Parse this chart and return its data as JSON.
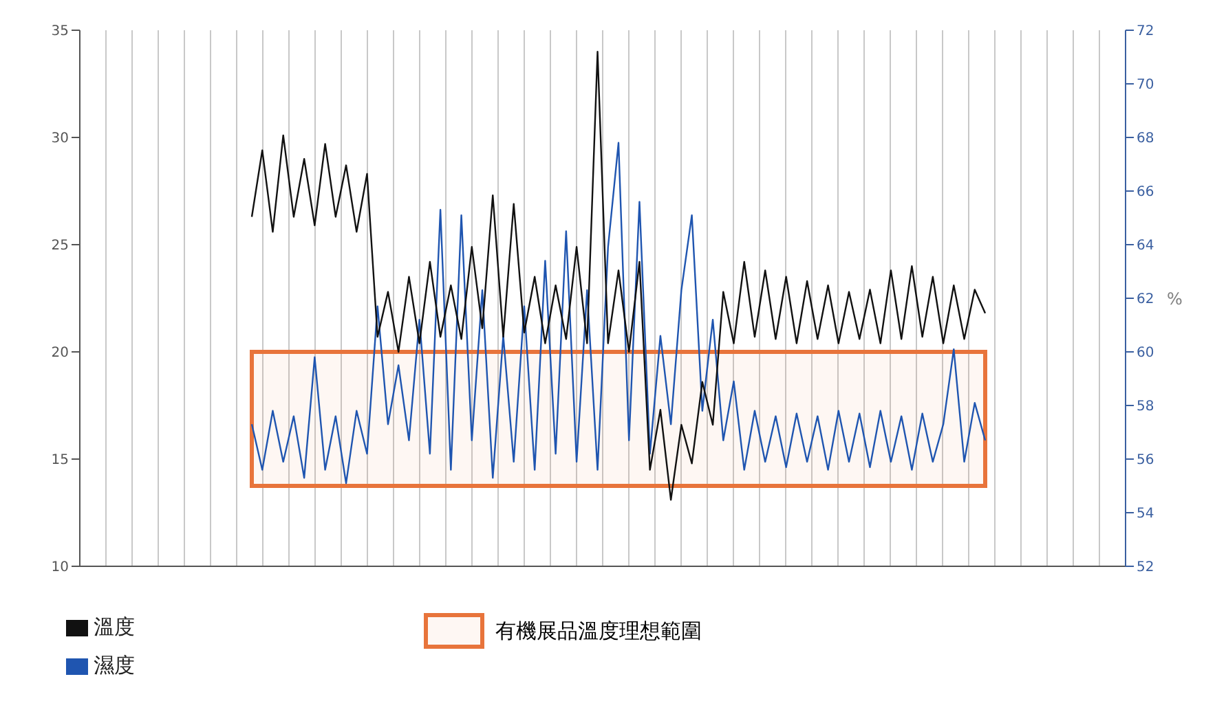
{
  "chart_data": {
    "type": "line",
    "categories": [
      null,
      null,
      null,
      null,
      null,
      null,
      null,
      null,
      null,
      null,
      null,
      null,
      null,
      null,
      null,
      null,
      null,
      null,
      null,
      null,
      null,
      null,
      null,
      null,
      null,
      null,
      null,
      null,
      null,
      null,
      null,
      null,
      null,
      null,
      null,
      null,
      null,
      null,
      null,
      null,
      null,
      null,
      null,
      null,
      null,
      null,
      null,
      null,
      null,
      null,
      null,
      null,
      null,
      null,
      null,
      null,
      null,
      null,
      null,
      null,
      null,
      null,
      null,
      null,
      null,
      null,
      null,
      null,
      null,
      null,
      null
    ],
    "ylim": [
      10,
      35
    ],
    "yticks": [
      10,
      15,
      20,
      25,
      30,
      35
    ],
    "y2lim": [
      52,
      72
    ],
    "y2ticks": [
      52,
      54,
      56,
      58,
      60,
      62,
      64,
      66,
      68,
      70,
      72
    ],
    "y2label": "%",
    "grid": "x",
    "legend": "bottom",
    "marker": "none",
    "line_style": "solid",
    "bands": [
      {
        "axis": "y2",
        "from": 55,
        "to": 60,
        "label": "有機展品溫度理想範圍",
        "color": "#e8743b"
      }
    ],
    "series": [
      {
        "name": "濕度",
        "color": "#1f55b0",
        "axis": "y2",
        "values": [
          57.3,
          55.6,
          57.8,
          55.9,
          57.6,
          55.3,
          59.8,
          55.6,
          57.6,
          55.1,
          57.8,
          56.2,
          61.7,
          57.3,
          59.5,
          56.7,
          61.2,
          56.2,
          65.3,
          55.6,
          65.1,
          56.7,
          62.3,
          55.3,
          60.6,
          55.9,
          61.7,
          55.6,
          63.4,
          56.2,
          64.5,
          55.9,
          62.3,
          55.6,
          63.9,
          67.8,
          56.7,
          65.6,
          56.2,
          60.6,
          57.3,
          62.3,
          65.1,
          57.8,
          61.2,
          56.7,
          58.9,
          55.6,
          57.8,
          55.9,
          57.6,
          55.7,
          57.7,
          55.9,
          57.6,
          55.6,
          57.8,
          55.9,
          57.7,
          55.7,
          57.8,
          55.9,
          57.6,
          55.6,
          57.7,
          55.9,
          57.3,
          60.1,
          55.9,
          58.1,
          56.7
        ]
      },
      {
        "name": "溫度",
        "color": "#111111",
        "axis": "y",
        "values": [
          26.3,
          29.4,
          25.6,
          30.1,
          26.3,
          29.0,
          25.9,
          29.7,
          26.3,
          28.7,
          25.6,
          28.3,
          20.7,
          22.8,
          20.0,
          23.5,
          20.4,
          24.2,
          20.7,
          23.1,
          20.6,
          24.9,
          21.1,
          27.3,
          20.7,
          26.9,
          20.9,
          23.5,
          20.4,
          23.1,
          20.6,
          24.9,
          20.4,
          34.0,
          20.4,
          23.8,
          20.0,
          24.2,
          14.5,
          17.3,
          13.1,
          16.6,
          14.8,
          18.6,
          16.6,
          22.8,
          20.4,
          24.2,
          20.7,
          23.8,
          20.6,
          23.5,
          20.4,
          23.3,
          20.6,
          23.1,
          20.4,
          22.8,
          20.6,
          22.9,
          20.4,
          23.8,
          20.6,
          24.0,
          20.7,
          23.5,
          20.4,
          23.1,
          20.6,
          22.9,
          21.8
        ]
      }
    ]
  }
}
